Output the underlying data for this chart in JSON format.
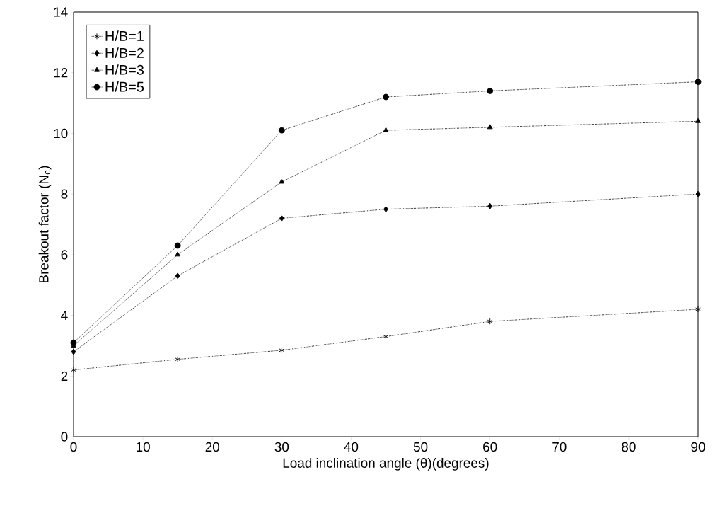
{
  "chart_data": {
    "type": "line",
    "xlabel": "Load inclination angle (θ)(degrees)",
    "ylabel": "Breakout factor (N$_{c}$)",
    "x": [
      0,
      15,
      30,
      45,
      60,
      90
    ],
    "series": [
      {
        "name": "H/B=1",
        "color": "#000000",
        "marker": "cross",
        "values": [
          2.2,
          2.55,
          2.85,
          3.3,
          3.8,
          4.2
        ]
      },
      {
        "name": "H/B=2",
        "color": "#000000",
        "marker": "diamond",
        "values": [
          2.8,
          5.3,
          7.2,
          7.5,
          7.6,
          8.0
        ]
      },
      {
        "name": "H/B=3",
        "color": "#000000",
        "marker": "triangle",
        "values": [
          3.0,
          6.0,
          8.4,
          10.1,
          10.2,
          10.4
        ]
      },
      {
        "name": "H/B=5",
        "color": "#000000",
        "marker": "circle",
        "values": [
          3.1,
          6.3,
          10.1,
          11.2,
          11.4,
          11.7
        ]
      }
    ],
    "xlim": [
      0,
      90
    ],
    "ylim": [
      0,
      14
    ],
    "xticks": [
      0,
      10,
      20,
      30,
      40,
      50,
      60,
      70,
      80,
      90
    ],
    "yticks": [
      0,
      2,
      4,
      6,
      8,
      10,
      12,
      14
    ],
    "grid": false,
    "legend": "top left",
    "line_style": "dotted"
  }
}
